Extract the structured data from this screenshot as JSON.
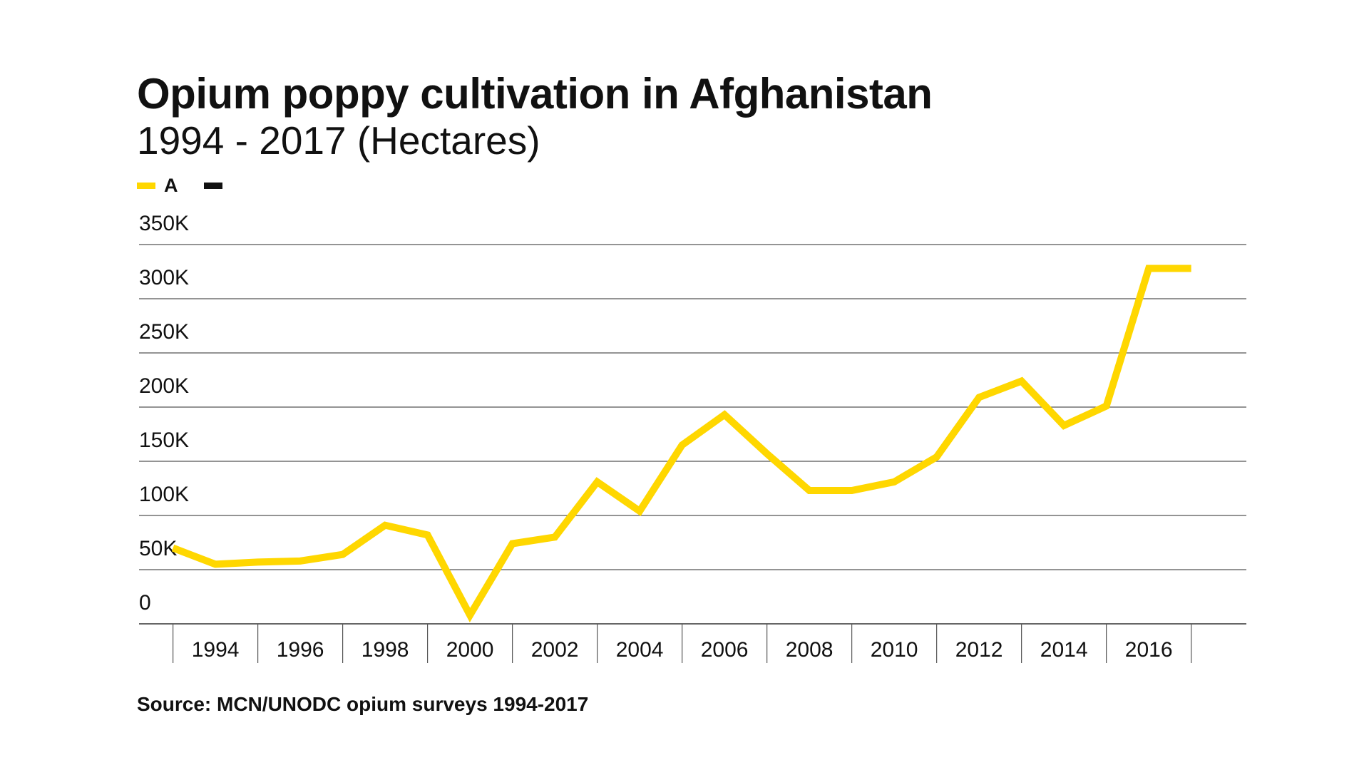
{
  "title": "Opium poppy cultivation in Afghanistan",
  "subtitle": "1994 - 2017 (Hectares)",
  "source": "Source: MCN/UNODC opium surveys 1994-2017",
  "legend": [
    {
      "label": "A",
      "color": "#FFD700"
    },
    {
      "label": "",
      "color": "#111111"
    }
  ],
  "chart_data": {
    "type": "line",
    "title": "Opium poppy cultivation in Afghanistan",
    "subtitle": "1994 - 2017 (Hectares)",
    "xlabel": "",
    "ylabel": "",
    "x": [
      1993,
      1994,
      1995,
      1996,
      1997,
      1998,
      1999,
      2000,
      2001,
      2002,
      2003,
      2004,
      2005,
      2006,
      2007,
      2008,
      2009,
      2010,
      2011,
      2012,
      2013,
      2014,
      2015,
      2016,
      2017
    ],
    "xlim": [
      1992.2,
      2018.3
    ],
    "x_ticks": [
      1994,
      1996,
      1998,
      2000,
      2002,
      2004,
      2006,
      2008,
      2010,
      2012,
      2014,
      2016
    ],
    "y_ticks": [
      0,
      50000,
      100000,
      150000,
      200000,
      250000,
      300000,
      350000
    ],
    "y_tick_labels": [
      "0",
      "50K",
      "100K",
      "150K",
      "200K",
      "250K",
      "300K",
      "350K"
    ],
    "ylim": [
      0,
      350000
    ],
    "grid": true,
    "legend_position": "top-left",
    "series": [
      {
        "name": "A",
        "color": "#FFD700",
        "values": [
          70000,
          55000,
          57000,
          58000,
          64000,
          91000,
          82000,
          8000,
          74000,
          80000,
          131000,
          104000,
          165000,
          193000,
          157000,
          123000,
          123000,
          131000,
          154000,
          209000,
          224000,
          183000,
          201000,
          328000,
          328000
        ]
      }
    ]
  }
}
